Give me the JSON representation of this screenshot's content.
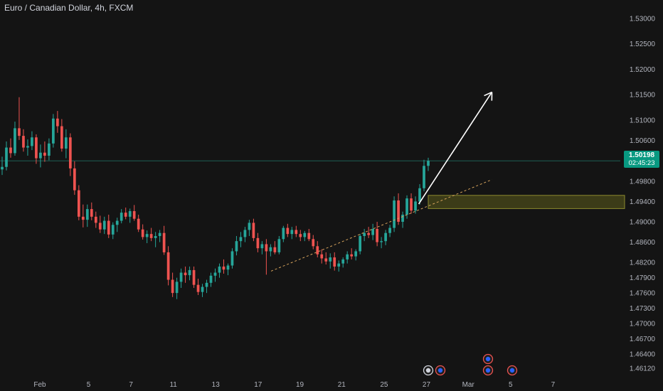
{
  "header": {
    "title": "Euro / Canadian Dollar, 4h, FXCM"
  },
  "price_label": {
    "price": "1.50198",
    "countdown": "02:45:23"
  },
  "colors": {
    "up": "#26a69a",
    "down": "#ef5350",
    "background": "#141414",
    "zone_fill": "#4a4a1a",
    "zone_border": "#8c8a2e",
    "trendline": "#d6a35c",
    "arrow": "#ffffff",
    "current_price_line": "#1f5f55"
  },
  "chart_data": {
    "type": "candlestick",
    "title": "Euro / Canadian Dollar, 4h, FXCM",
    "ylim": [
      1.4598,
      1.5325
    ],
    "yticks": [
      1.53,
      1.525,
      1.52,
      1.515,
      1.51,
      1.506,
      1.498,
      1.494,
      1.49,
      1.486,
      1.482,
      1.479,
      1.476,
      1.473,
      1.47,
      1.467,
      1.464,
      1.4612
    ],
    "ytick_labels": [
      "1.53000",
      "1.52500",
      "1.52000",
      "1.51500",
      "1.51000",
      "1.50600",
      "1.49800",
      "1.49400",
      "1.49000",
      "1.48600",
      "1.48200",
      "1.47900",
      "1.47600",
      "1.47300",
      "1.47000",
      "1.46700",
      "1.46400",
      "1.46120"
    ],
    "xticks": [
      {
        "label": "Feb",
        "pos": 0
      },
      {
        "label": "5",
        "pos": 0.084
      },
      {
        "label": "7",
        "pos": 0.157
      },
      {
        "label": "11",
        "pos": 0.23
      },
      {
        "label": "13",
        "pos": 0.303
      },
      {
        "label": "17",
        "pos": 0.376
      },
      {
        "label": "19",
        "pos": 0.448
      },
      {
        "label": "21",
        "pos": 0.52
      },
      {
        "label": "25",
        "pos": 0.593
      },
      {
        "label": "27",
        "pos": 0.666
      },
      {
        "label": "Mar",
        "pos": 0.738
      },
      {
        "label": "5",
        "pos": 0.811
      },
      {
        "label": "7",
        "pos": 0.884
      }
    ],
    "current_price": 1.50198,
    "grid": false,
    "candles": [
      [
        1.5003,
        1.5028,
        1.4992,
        1.5008
      ],
      [
        1.5008,
        1.5058,
        1.5001,
        1.5046
      ],
      [
        1.5046,
        1.5064,
        1.5026,
        1.5035
      ],
      [
        1.5035,
        1.5097,
        1.503,
        1.5084
      ],
      [
        1.5084,
        1.5145,
        1.5061,
        1.5069
      ],
      [
        1.5069,
        1.5082,
        1.5038,
        1.5046
      ],
      [
        1.5046,
        1.5062,
        1.503,
        1.5049
      ],
      [
        1.5049,
        1.5078,
        1.5041,
        1.5066
      ],
      [
        1.5066,
        1.5072,
        1.5014,
        1.5025
      ],
      [
        1.5025,
        1.5052,
        1.5007,
        1.5036
      ],
      [
        1.5036,
        1.5058,
        1.5018,
        1.503
      ],
      [
        1.503,
        1.5064,
        1.5021,
        1.5054
      ],
      [
        1.5054,
        1.5112,
        1.5046,
        1.5103
      ],
      [
        1.5103,
        1.5118,
        1.5075,
        1.5088
      ],
      [
        1.5088,
        1.5102,
        1.5038,
        1.5044
      ],
      [
        1.5044,
        1.5082,
        1.5025,
        1.5066
      ],
      [
        1.5066,
        1.5074,
        1.499,
        1.5005
      ],
      [
        1.5005,
        1.5019,
        1.4953,
        1.4962
      ],
      [
        1.4962,
        1.4972,
        1.4903,
        1.491
      ],
      [
        1.491,
        1.4934,
        1.4889,
        1.4904
      ],
      [
        1.4904,
        1.4934,
        1.489,
        1.4925
      ],
      [
        1.4925,
        1.4938,
        1.4903,
        1.491
      ],
      [
        1.491,
        1.492,
        1.4888,
        1.4898
      ],
      [
        1.4898,
        1.4912,
        1.4878,
        1.4885
      ],
      [
        1.4885,
        1.491,
        1.4876,
        1.4902
      ],
      [
        1.4902,
        1.4914,
        1.4868,
        1.4875
      ],
      [
        1.4875,
        1.4899,
        1.4866,
        1.4894
      ],
      [
        1.4894,
        1.4908,
        1.488,
        1.4902
      ],
      [
        1.4902,
        1.4925,
        1.4897,
        1.4918
      ],
      [
        1.4918,
        1.4928,
        1.4905,
        1.491
      ],
      [
        1.491,
        1.4926,
        1.4898,
        1.4921
      ],
      [
        1.4921,
        1.4933,
        1.4902,
        1.4906
      ],
      [
        1.4906,
        1.4914,
        1.488,
        1.4885
      ],
      [
        1.4885,
        1.4895,
        1.4865,
        1.487
      ],
      [
        1.487,
        1.4883,
        1.4858,
        1.4876
      ],
      [
        1.4876,
        1.4888,
        1.4862,
        1.4868
      ],
      [
        1.4868,
        1.488,
        1.485,
        1.4872
      ],
      [
        1.4872,
        1.4884,
        1.486,
        1.4878
      ],
      [
        1.4878,
        1.4892,
        1.4835,
        1.484
      ],
      [
        1.484,
        1.4852,
        1.4775,
        1.4786
      ],
      [
        1.4786,
        1.48,
        1.4752,
        1.476
      ],
      [
        1.476,
        1.479,
        1.4748,
        1.4782
      ],
      [
        1.4782,
        1.4808,
        1.477,
        1.48
      ],
      [
        1.48,
        1.4812,
        1.478,
        1.4795
      ],
      [
        1.4795,
        1.4812,
        1.4785,
        1.4805
      ],
      [
        1.4805,
        1.4812,
        1.477,
        1.4776
      ],
      [
        1.4776,
        1.4788,
        1.4756,
        1.4762
      ],
      [
        1.4762,
        1.4778,
        1.4752,
        1.4772
      ],
      [
        1.4772,
        1.4786,
        1.476,
        1.478
      ],
      [
        1.478,
        1.48,
        1.4772,
        1.4794
      ],
      [
        1.4794,
        1.4808,
        1.4782,
        1.48
      ],
      [
        1.48,
        1.4818,
        1.479,
        1.4812
      ],
      [
        1.4812,
        1.4826,
        1.4798,
        1.4806
      ],
      [
        1.4806,
        1.4818,
        1.4795,
        1.4814
      ],
      [
        1.4814,
        1.4848,
        1.4808,
        1.4842
      ],
      [
        1.4842,
        1.4872,
        1.4834,
        1.4862
      ],
      [
        1.4862,
        1.488,
        1.485,
        1.487
      ],
      [
        1.487,
        1.489,
        1.486,
        1.4884
      ],
      [
        1.4884,
        1.4904,
        1.4872,
        1.4898
      ],
      [
        1.4898,
        1.4906,
        1.4862,
        1.4868
      ],
      [
        1.4868,
        1.4878,
        1.484,
        1.4848
      ],
      [
        1.4848,
        1.4862,
        1.4836,
        1.4856
      ],
      [
        1.4856,
        1.4866,
        1.4796,
        1.4842
      ],
      [
        1.4842,
        1.4856,
        1.4832,
        1.485
      ],
      [
        1.485,
        1.4862,
        1.4836,
        1.484
      ],
      [
        1.484,
        1.4872,
        1.4836,
        1.4866
      ],
      [
        1.4866,
        1.4892,
        1.486,
        1.4888
      ],
      [
        1.4888,
        1.4896,
        1.487,
        1.4876
      ],
      [
        1.4876,
        1.489,
        1.4866,
        1.4884
      ],
      [
        1.4884,
        1.4892,
        1.487,
        1.4876
      ],
      [
        1.4876,
        1.4884,
        1.4862,
        1.487
      ],
      [
        1.487,
        1.4882,
        1.4862,
        1.4878
      ],
      [
        1.4878,
        1.4886,
        1.4862,
        1.4866
      ],
      [
        1.4866,
        1.4874,
        1.4846,
        1.4852
      ],
      [
        1.4852,
        1.4862,
        1.483,
        1.4836
      ],
      [
        1.4836,
        1.4846,
        1.4818,
        1.4828
      ],
      [
        1.4828,
        1.484,
        1.4816,
        1.4822
      ],
      [
        1.4822,
        1.4838,
        1.4808,
        1.483
      ],
      [
        1.483,
        1.484,
        1.4804,
        1.4812
      ],
      [
        1.4812,
        1.4824,
        1.4802,
        1.4818
      ],
      [
        1.4818,
        1.483,
        1.481,
        1.4826
      ],
      [
        1.4826,
        1.4842,
        1.4818,
        1.4836
      ],
      [
        1.4836,
        1.4848,
        1.4826,
        1.4832
      ],
      [
        1.4832,
        1.4846,
        1.4824,
        1.4842
      ],
      [
        1.4842,
        1.4876,
        1.4836,
        1.4872
      ],
      [
        1.4872,
        1.4886,
        1.4862,
        1.4878
      ],
      [
        1.4878,
        1.489,
        1.4868,
        1.4874
      ],
      [
        1.4874,
        1.4896,
        1.4864,
        1.4886
      ],
      [
        1.4886,
        1.49,
        1.4852,
        1.486
      ],
      [
        1.486,
        1.487,
        1.4848,
        1.4862
      ],
      [
        1.4862,
        1.4884,
        1.4854,
        1.4878
      ],
      [
        1.4878,
        1.4894,
        1.487,
        1.4888
      ],
      [
        1.4888,
        1.495,
        1.488,
        1.4942
      ],
      [
        1.4942,
        1.4956,
        1.4894,
        1.49
      ],
      [
        1.49,
        1.492,
        1.4888,
        1.4914
      ],
      [
        1.4914,
        1.4952,
        1.4906,
        1.4946
      ],
      [
        1.4946,
        1.4956,
        1.4916,
        1.4922
      ],
      [
        1.4922,
        1.495,
        1.4916,
        1.494
      ],
      [
        1.494,
        1.4974,
        1.4934,
        1.4966
      ],
      [
        1.4966,
        1.5022,
        1.496,
        1.501
      ],
      [
        1.501,
        1.5026,
        1.5,
        1.502
      ]
    ],
    "annotations": [
      {
        "type": "zone",
        "y_top": 1.4952,
        "y_bottom": 1.4926
      },
      {
        "type": "trendline",
        "x0": 0.437,
        "y0": 1.4803,
        "x1": 0.793,
        "y1": 1.4983,
        "style": "dashed"
      },
      {
        "type": "arrow",
        "x0": 0.675,
        "y0": 1.4935,
        "x1": 0.793,
        "y1": 1.5155
      }
    ],
    "event_icons": 5
  }
}
